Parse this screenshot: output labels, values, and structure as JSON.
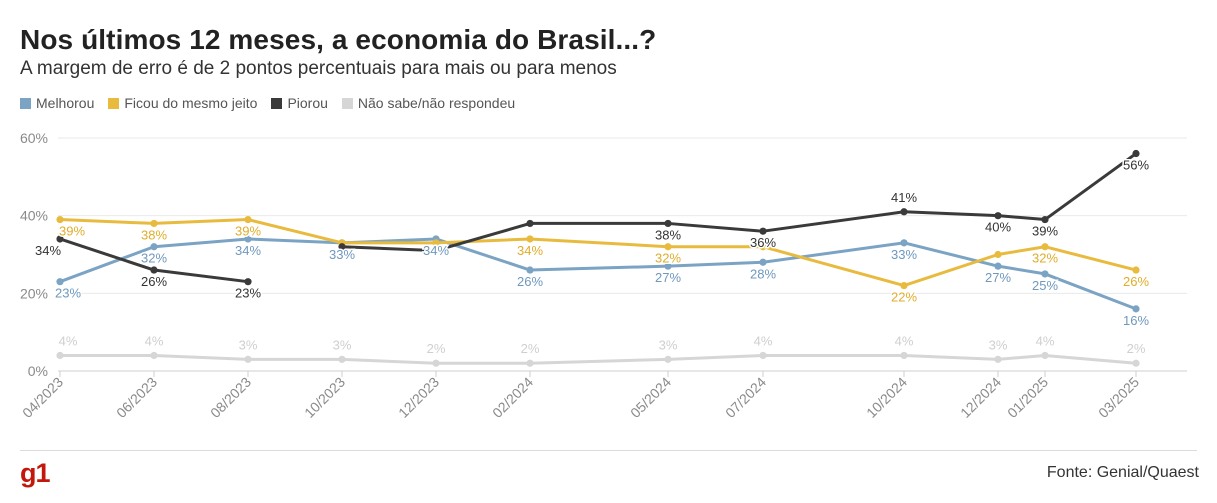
{
  "header": {
    "title": "Nos últimos 12 meses, a economia do Brasil...?",
    "subtitle": "A margem de erro é de 2 pontos percentuais para mais ou para menos"
  },
  "legend": [
    {
      "label": "Melhorou",
      "color": "#7ba3c4"
    },
    {
      "label": "Ficou do mesmo jeito",
      "color": "#e8bb3f"
    },
    {
      "label": "Piorou",
      "color": "#3a3a3a"
    },
    {
      "label": "Não sabe/não respondeu",
      "color": "#d6d6d6"
    }
  ],
  "chart_data": {
    "type": "line",
    "title": "Nos últimos 12 meses, a economia do Brasil...?",
    "subtitle": "A margem de erro é de 2 pontos percentuais para mais ou para menos",
    "x": [
      "04/2023",
      "06/2023",
      "08/2023",
      "10/2023",
      "12/2023",
      "02/2024",
      "05/2024",
      "07/2024",
      "10/2024",
      "12/2024",
      "01/2025",
      "03/2025"
    ],
    "ylim": [
      0,
      60
    ],
    "yticks": [
      "0%",
      "20%",
      "40%",
      "60%"
    ],
    "grid": true,
    "legend_position": "top-left",
    "series": [
      {
        "name": "Melhorou",
        "color": "#7ba3c4",
        "values": [
          23,
          32,
          34,
          33,
          34,
          26,
          27,
          28,
          33,
          27,
          25,
          16
        ],
        "labels": [
          "23%",
          "32%",
          "34%",
          "33%",
          "34%",
          "26%",
          "27%",
          "28%",
          "33%",
          "27%",
          "25%",
          "16%"
        ]
      },
      {
        "name": "Ficou do mesmo jeito",
        "color": "#e8bb3f",
        "values": [
          39,
          38,
          39,
          33,
          33,
          34,
          32,
          32,
          22,
          30,
          32,
          26
        ],
        "labels": [
          "39%",
          "38%",
          "39%",
          "",
          "",
          "34%",
          "32%",
          "",
          "22%",
          "",
          "32%",
          "26%"
        ]
      },
      {
        "name": "Piorou",
        "color": "#3a3a3a",
        "values": [
          34,
          26,
          23,
          32,
          31,
          38,
          38,
          36,
          41,
          40,
          39,
          56
        ],
        "labels": [
          "34%",
          "26%",
          "23%",
          "",
          "",
          "",
          "38%",
          "36%",
          "41%",
          "40%",
          "39%",
          "56%"
        ]
      },
      {
        "name": "Não sabe/não respondeu",
        "color": "#d6d6d6",
        "values": [
          4,
          4,
          3,
          3,
          2,
          2,
          3,
          4,
          4,
          3,
          4,
          2
        ],
        "labels": [
          "4%",
          "4%",
          "3%",
          "3%",
          "2%",
          "2%",
          "3%",
          "4%",
          "4%",
          "3%",
          "4%",
          "2%"
        ]
      }
    ],
    "source": "Fonte: Genial/Quaest"
  },
  "footer": {
    "logo": "g1",
    "source": "Fonte: Genial/Quaest"
  }
}
